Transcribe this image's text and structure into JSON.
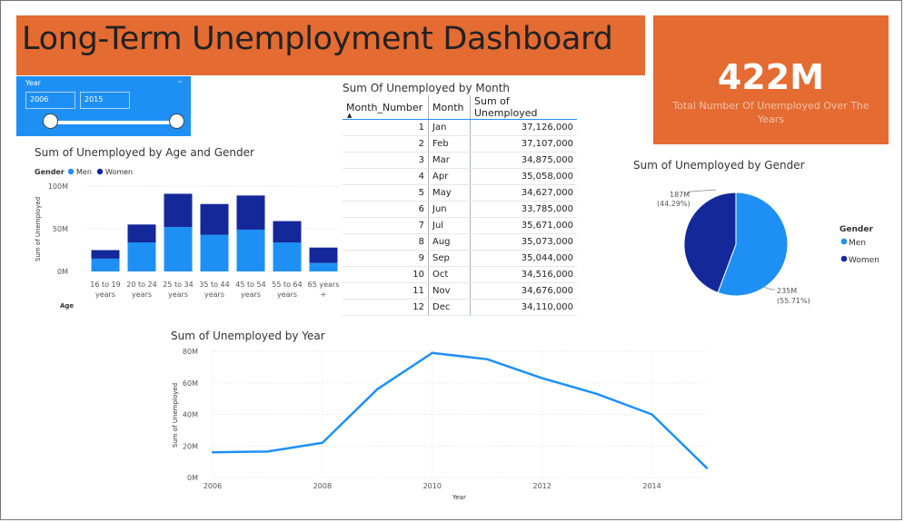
{
  "dashboard": {
    "title": "Long-Term Unemployment Dashboard"
  },
  "kpi": {
    "value": "422M",
    "label": "Total Number Of Unemployed Over The Years"
  },
  "slicer": {
    "title": "Year",
    "from": "2006",
    "to": "2015",
    "chevron": "chevron-down-icon"
  },
  "colors": {
    "banner": "#E46B32",
    "men": "#1E90F5",
    "women": "#14289A",
    "line": "#1E90F5"
  },
  "table": {
    "title": "Sum Of Unemployed by Month",
    "columns": [
      "Month_Number",
      "Month",
      "Sum of Unemployed"
    ],
    "rows": [
      [
        "1",
        "Jan",
        "37,126,000"
      ],
      [
        "2",
        "Feb",
        "37,107,000"
      ],
      [
        "3",
        "Mar",
        "34,875,000"
      ],
      [
        "4",
        "Apr",
        "35,058,000"
      ],
      [
        "5",
        "May",
        "34,627,000"
      ],
      [
        "6",
        "Jun",
        "33,785,000"
      ],
      [
        "7",
        "Jul",
        "35,671,000"
      ],
      [
        "8",
        "Aug",
        "35,073,000"
      ],
      [
        "9",
        "Sep",
        "35,044,000"
      ],
      [
        "10",
        "Oct",
        "34,516,000"
      ],
      [
        "11",
        "Nov",
        "34,676,000"
      ],
      [
        "12",
        "Dec",
        "34,110,000"
      ]
    ]
  },
  "chart_data": [
    {
      "type": "bar",
      "stacked": true,
      "title": "Sum of Unemployed by Age and Gender",
      "legend_title": "Gender",
      "legend_position": "top-left",
      "categories": [
        [
          "16 to 19",
          "years"
        ],
        [
          "20 to 24",
          "years"
        ],
        [
          "25 to 34",
          "years"
        ],
        [
          "35 to 44",
          "years"
        ],
        [
          "45 to 54",
          "years"
        ],
        [
          "55 to 64",
          "years"
        ],
        [
          "65 years",
          "+"
        ]
      ],
      "series": [
        {
          "name": "Men",
          "values": [
            15,
            34,
            52,
            43,
            49,
            34,
            10
          ]
        },
        {
          "name": "Women",
          "values": [
            10,
            21,
            39,
            36,
            40,
            25,
            18
          ]
        }
      ],
      "xlabel": "Age",
      "ylabel": "Sum of Unemployed",
      "yticks": [
        "0M",
        "50M",
        "100M"
      ],
      "ylim": [
        0,
        100
      ],
      "grid": true
    },
    {
      "type": "pie",
      "title": "Sum of Unemployed by Gender",
      "legend_title": "Gender",
      "legend_position": "right",
      "slices": [
        {
          "name": "Men",
          "value": 235,
          "label": "235M",
          "pct": "(55.71%)"
        },
        {
          "name": "Women",
          "value": 187,
          "label": "187M",
          "pct": "(44.29%)"
        }
      ]
    },
    {
      "type": "line",
      "title": "Sum of Unemployed by Year",
      "x": [
        2006,
        2007,
        2008,
        2009,
        2010,
        2011,
        2012,
        2013,
        2014,
        2015
      ],
      "y": [
        16,
        16.5,
        22,
        56,
        79,
        75,
        63,
        53,
        40,
        6
      ],
      "xticks": [
        "2006",
        "2008",
        "2010",
        "2012",
        "2014"
      ],
      "yticks": [
        "0M",
        "20M",
        "40M",
        "60M",
        "80M"
      ],
      "xlim": [
        2006,
        2015
      ],
      "ylim": [
        0,
        80
      ],
      "xlabel": "Year",
      "ylabel": "Sum of Unemployed",
      "grid": true
    }
  ]
}
